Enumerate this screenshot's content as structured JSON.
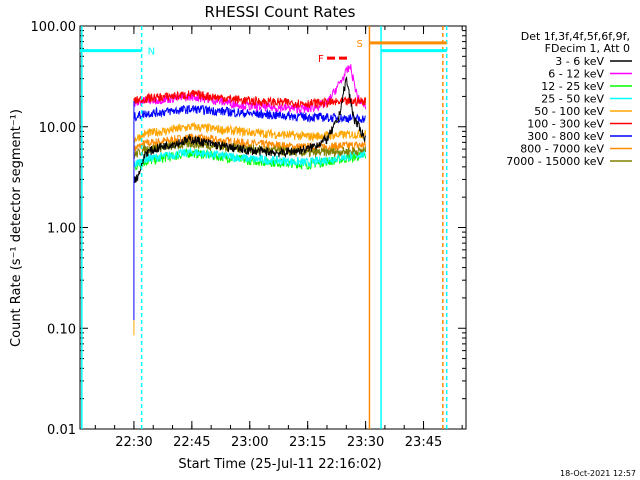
{
  "chart_data": {
    "type": "line",
    "title": "RHESSI Count Rates",
    "xlabel": "Start Time (25-Jul-11 22:16:02)",
    "ylabel": "Count Rate (s⁻¹ detector segment⁻¹)",
    "yscale": "log",
    "ylim": [
      0.01,
      100
    ],
    "xlim": [
      "22:16:02",
      "23:56:00"
    ],
    "x_tick_labels": [
      "22:30",
      "22:45",
      "23:00",
      "23:15",
      "23:30",
      "23:45"
    ],
    "y_tick_labels": [
      "0.01",
      "0.10",
      "1.00",
      "10.00",
      "100.00"
    ],
    "legend_header": [
      "Det 1f,3f,4f,5f,6f,9f,",
      "FDecim 1, Att 0"
    ],
    "legend_position": "right",
    "footer_date": "18-Oct-2021 12:57",
    "series": [
      {
        "name": "3 - 6 keV",
        "color": "#000000",
        "times": [
          "22:30",
          "22:31",
          "22:33",
          "22:38",
          "22:45",
          "22:52",
          "23:00",
          "23:08",
          "23:15",
          "23:20",
          "23:23",
          "23:25",
          "23:27",
          "23:30"
        ],
        "values": [
          3.0,
          3.2,
          5.5,
          6.5,
          7.5,
          6.5,
          5.8,
          5.5,
          6.0,
          7.5,
          12.0,
          30.0,
          12.0,
          7.5
        ]
      },
      {
        "name": "6 - 12 keV",
        "color": "#ff00ff",
        "times": [
          "22:30",
          "22:33",
          "22:45",
          "23:00",
          "23:15",
          "23:20",
          "23:24",
          "23:26",
          "23:28",
          "23:30"
        ],
        "values": [
          17,
          18,
          20,
          16,
          15,
          17,
          30,
          40,
          19,
          16
        ]
      },
      {
        "name": "12 - 25 keV",
        "color": "#00ff00",
        "times": [
          "22:30",
          "22:33",
          "22:45",
          "23:00",
          "23:15",
          "23:30"
        ],
        "values": [
          4.0,
          4.5,
          5.5,
          4.6,
          4.2,
          5.2
        ]
      },
      {
        "name": "25 - 50 keV",
        "color": "#00ffff",
        "times": [
          "22:30",
          "22:33",
          "22:45",
          "23:00",
          "23:15",
          "23:30"
        ],
        "values": [
          4.2,
          4.8,
          5.6,
          4.8,
          4.4,
          5.4
        ]
      },
      {
        "name": "50 - 100 keV",
        "color": "#ffa500",
        "times": [
          "22:30",
          "22:33",
          "22:45",
          "23:00",
          "23:15",
          "23:30"
        ],
        "values": [
          7.5,
          8.5,
          10.0,
          8.8,
          8.0,
          8.5
        ]
      },
      {
        "name": "100 - 300 keV",
        "color": "#ff0000",
        "times": [
          "22:30",
          "22:33",
          "22:45",
          "23:00",
          "23:15",
          "23:30"
        ],
        "values": [
          18,
          19,
          21,
          18,
          17,
          18
        ]
      },
      {
        "name": "300 - 800 keV",
        "color": "#0000ff",
        "times": [
          "22:30",
          "22:33",
          "22:45",
          "23:00",
          "23:15",
          "23:30"
        ],
        "values": [
          12.5,
          13.5,
          15,
          13.5,
          12.5,
          12.0
        ]
      },
      {
        "name": "800 - 7000 keV",
        "color": "#ff8c00",
        "times": [
          "22:30",
          "22:33",
          "22:45",
          "23:00",
          "23:15",
          "23:30"
        ],
        "values": [
          6.0,
          6.8,
          7.8,
          6.8,
          6.2,
          6.6
        ]
      },
      {
        "name": "7000 - 15000 keV",
        "color": "#808000",
        "times": [
          "22:30",
          "22:33",
          "22:45",
          "23:00",
          "23:15",
          "23:30"
        ],
        "values": [
          5.2,
          6.0,
          6.8,
          6.0,
          5.5,
          5.8
        ]
      }
    ],
    "markers": [
      {
        "label": "N",
        "color": "#00ffff",
        "level": 57,
        "from": "22:16",
        "to": "22:32"
      },
      {
        "label": "F",
        "color": "#ff0000",
        "level": 48,
        "from": "23:20",
        "to": "23:26",
        "dashed": true
      },
      {
        "label": "S",
        "color": "#ff8c00",
        "level": 68,
        "from": "23:31",
        "to": "23:51"
      },
      {
        "label": "",
        "color": "#00ffff",
        "level": 57,
        "from": "23:34",
        "to": "23:51"
      }
    ],
    "vertical_lines": [
      {
        "time": "22:16:30",
        "color": "#00ffff",
        "style": "solid"
      },
      {
        "time": "22:32",
        "color": "#00ffff",
        "style": "dashed"
      },
      {
        "time": "23:31",
        "color": "#ff8c00",
        "style": "solid"
      },
      {
        "time": "23:34",
        "color": "#00ffff",
        "style": "solid"
      },
      {
        "time": "23:50",
        "color": "#ff8c00",
        "style": "dashed"
      },
      {
        "time": "23:51",
        "color": "#00ffff",
        "style": "dashed"
      }
    ]
  }
}
